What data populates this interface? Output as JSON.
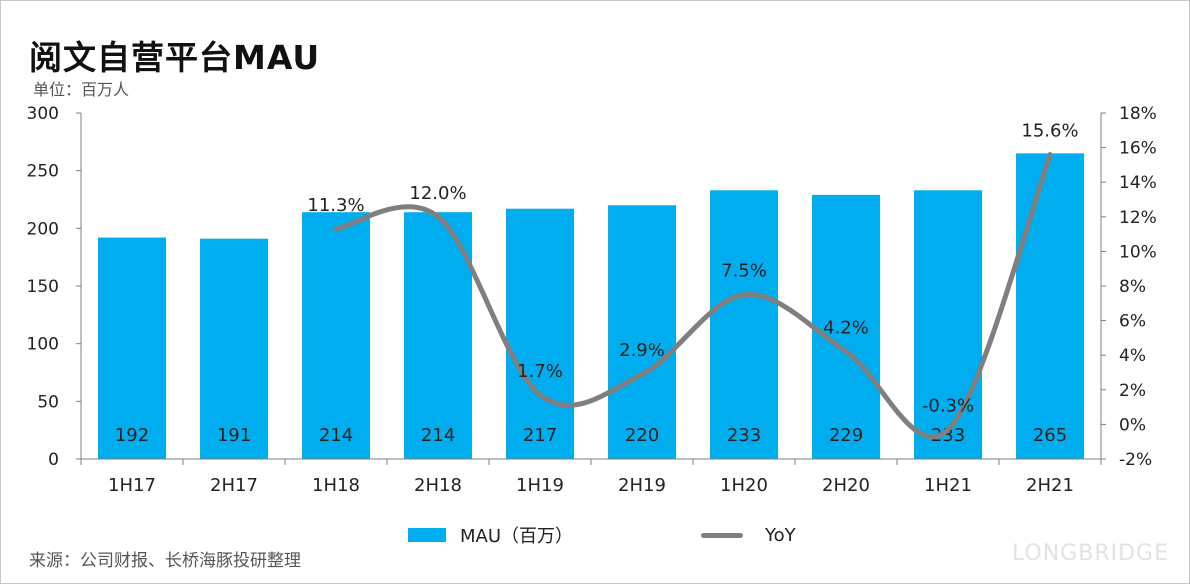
{
  "title": "阅文自营平台MAU",
  "unit": "单位：百万人",
  "source": "来源：公司财报、长桥海豚投研整理",
  "watermark": "LONGBRIDGE",
  "colors": {
    "bar": "#00aeef",
    "line": "#7f7f7f",
    "axis": "#7f7f7f",
    "text": "#222222"
  },
  "chart_data": {
    "type": "bar+line",
    "categories": [
      "1H17",
      "2H17",
      "1H18",
      "2H18",
      "1H19",
      "2H19",
      "1H20",
      "2H20",
      "1H21",
      "2H21"
    ],
    "series": [
      {
        "name": "MAU（百万）",
        "type": "bar",
        "axis": "left",
        "values": [
          192,
          191,
          214,
          214,
          217,
          220,
          233,
          229,
          233,
          265
        ],
        "labels": [
          "192",
          "191",
          "214",
          "214",
          "217",
          "220",
          "233",
          "229",
          "233",
          "265"
        ]
      },
      {
        "name": "YoY",
        "type": "line",
        "axis": "right",
        "smooth": true,
        "values": [
          null,
          null,
          11.3,
          12.0,
          1.7,
          2.9,
          7.5,
          4.2,
          -0.3,
          15.6
        ],
        "labels": [
          null,
          null,
          "11.3%",
          "12.0%",
          "1.7%",
          "2.9%",
          "7.5%",
          "4.2%",
          "-0.3%",
          "15.6%"
        ]
      }
    ],
    "left_axis": {
      "min": 0,
      "max": 300,
      "ticks": [
        0,
        50,
        100,
        150,
        200,
        250,
        300
      ],
      "tick_labels": [
        "0",
        "50",
        "100",
        "150",
        "200",
        "250",
        "300"
      ]
    },
    "right_axis": {
      "min": -2,
      "max": 18,
      "ticks": [
        -2,
        0,
        2,
        4,
        6,
        8,
        10,
        12,
        14,
        16,
        18
      ],
      "tick_labels": [
        "-2%",
        "0%",
        "2%",
        "4%",
        "6%",
        "8%",
        "10%",
        "12%",
        "14%",
        "16%",
        "18%"
      ]
    },
    "grid": false,
    "legend_position": "bottom"
  }
}
